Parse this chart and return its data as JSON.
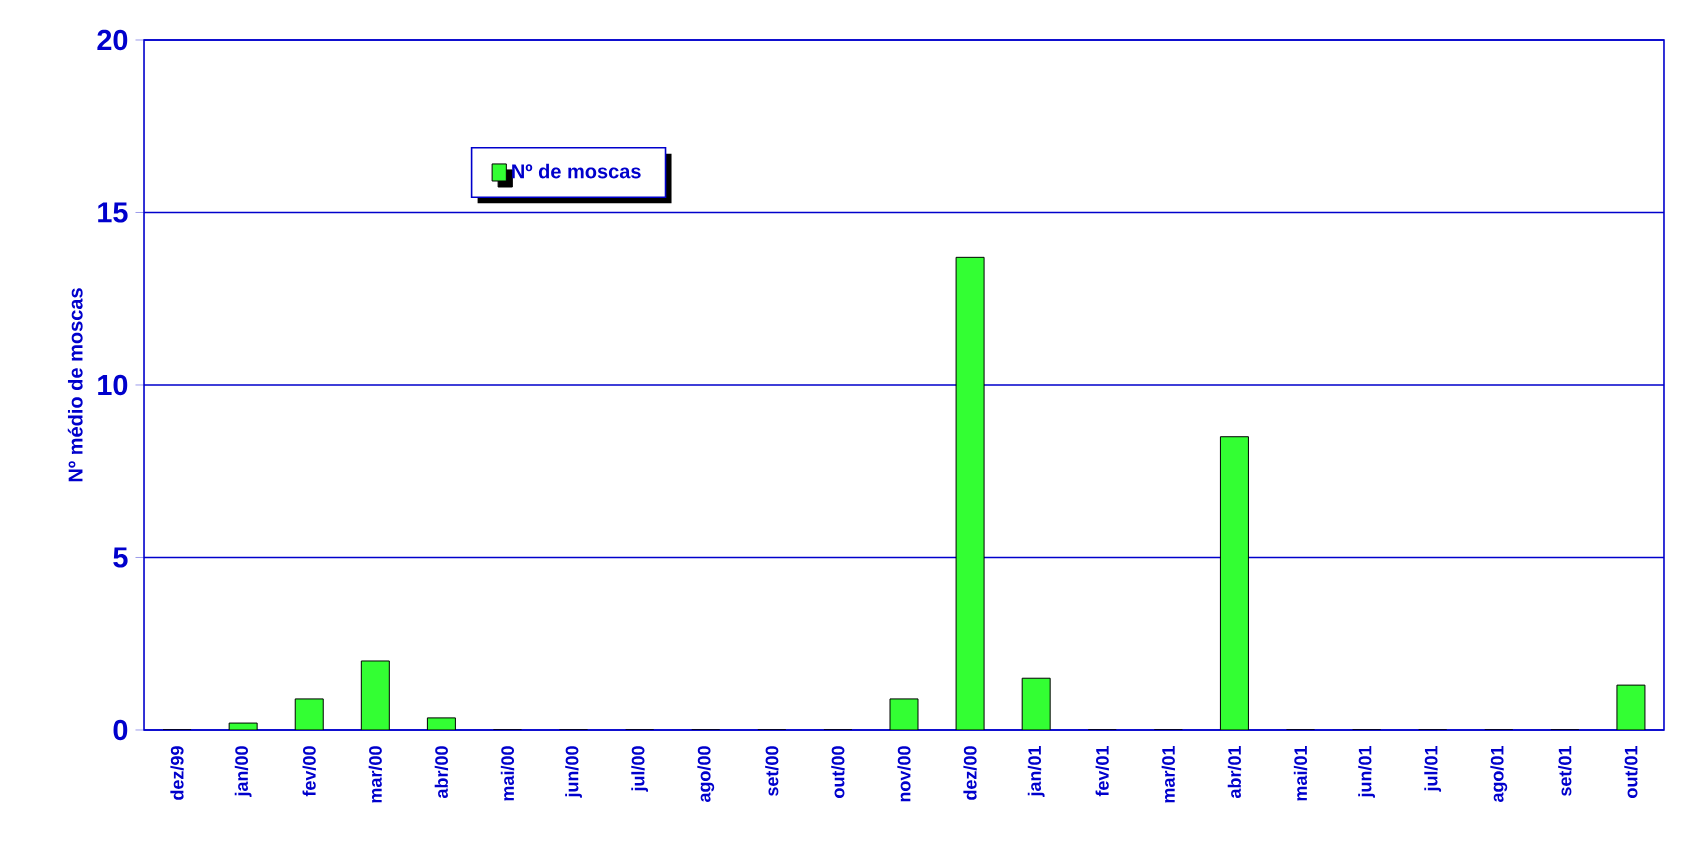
{
  "chart_data": {
    "type": "bar",
    "ylabel": "Nº médio de moscas",
    "categories": [
      "dez/99",
      "jan/00",
      "fev/00",
      "mar/00",
      "abr/00",
      "mai/00",
      "jun/00",
      "jul/00",
      "ago/00",
      "set/00",
      "out/00",
      "nov/00",
      "dez/00",
      "jan/01",
      "fev/01",
      "mar/01",
      "abr/01",
      "mai/01",
      "jun/01",
      "jul/01",
      "ago/01",
      "set/01",
      "out/01"
    ],
    "series": [
      {
        "name": "Nº de moscas",
        "color": "#33ff33",
        "values": [
          0,
          0.2,
          0.9,
          2.0,
          0.35,
          0,
          0,
          0,
          0,
          0,
          0,
          0.9,
          13.7,
          1.5,
          0,
          0,
          8.5,
          0,
          0,
          0,
          0,
          0,
          1.3
        ]
      }
    ],
    "ylim": [
      0,
      20
    ],
    "yticks": [
      0,
      5,
      10,
      15,
      20
    ],
    "grid": "y",
    "legend": "top left"
  }
}
